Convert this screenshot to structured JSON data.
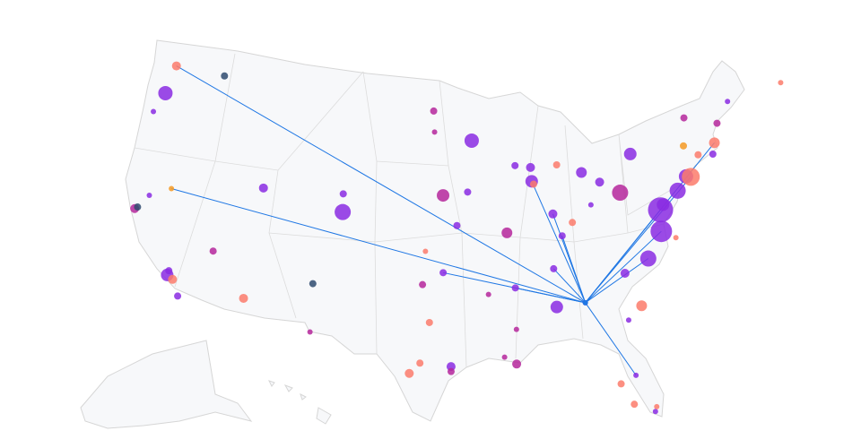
{
  "map": {
    "projection": "albers-usa",
    "hub": {
      "lon": -84.43,
      "lat": 33.64
    },
    "route_color": "#1f77e4",
    "points": [
      {
        "lon": -122.3,
        "lat": 47.45,
        "size": 5,
        "color": "#fb7b6b"
      },
      {
        "lon": -122.6,
        "lat": 45.5,
        "size": 8,
        "color": "#8a2be2"
      },
      {
        "lon": -117.5,
        "lat": 47.6,
        "size": 4,
        "color": "#2f4b6e"
      },
      {
        "lon": -123.2,
        "lat": 44.1,
        "size": 3,
        "color": "#8a2be2"
      },
      {
        "lon": -122.4,
        "lat": 37.6,
        "size": 5,
        "color": "#b5279b"
      },
      {
        "lon": -122.2,
        "lat": 37.75,
        "size": 4,
        "color": "#2f4b6e"
      },
      {
        "lon": -121.5,
        "lat": 38.7,
        "size": 3,
        "color": "#8a2be2"
      },
      {
        "lon": -119.8,
        "lat": 39.5,
        "size": 3,
        "color": "#f59a23"
      },
      {
        "lon": -115.15,
        "lat": 36.1,
        "size": 4,
        "color": "#b5279b"
      },
      {
        "lon": -118.4,
        "lat": 33.9,
        "size": 7,
        "color": "#8a2be2"
      },
      {
        "lon": -118.35,
        "lat": 34.2,
        "size": 4,
        "color": "#8a2be2"
      },
      {
        "lon": -117.9,
        "lat": 33.7,
        "size": 5,
        "color": "#fb7b6b"
      },
      {
        "lon": -117.2,
        "lat": 32.7,
        "size": 4,
        "color": "#8a2be2"
      },
      {
        "lon": -111.9,
        "lat": 40.8,
        "size": 5,
        "color": "#8a2be2"
      },
      {
        "lon": -104.7,
        "lat": 39.9,
        "size": 9,
        "color": "#8a2be2"
      },
      {
        "lon": -104.8,
        "lat": 41.1,
        "size": 4,
        "color": "#8a2be2"
      },
      {
        "lon": -106.6,
        "lat": 35.0,
        "size": 4,
        "color": "#2f4b6e"
      },
      {
        "lon": -112.0,
        "lat": 33.4,
        "size": 5,
        "color": "#fb7b6b"
      },
      {
        "lon": -93.2,
        "lat": 44.9,
        "size": 8,
        "color": "#8a2be2"
      },
      {
        "lon": -96.8,
        "lat": 46.9,
        "size": 4,
        "color": "#b5279b"
      },
      {
        "lon": -96.7,
        "lat": 45.5,
        "size": 3,
        "color": "#b5279b"
      },
      {
        "lon": -95.9,
        "lat": 41.3,
        "size": 7,
        "color": "#b5279b"
      },
      {
        "lon": -94.7,
        "lat": 39.3,
        "size": 4,
        "color": "#8a2be2"
      },
      {
        "lon": -97.4,
        "lat": 37.6,
        "size": 3,
        "color": "#fb7b6b"
      },
      {
        "lon": -95.9,
        "lat": 36.2,
        "size": 4,
        "color": "#8a2be2"
      },
      {
        "lon": -97.6,
        "lat": 35.4,
        "size": 4,
        "color": "#b5279b"
      },
      {
        "lon": -97.0,
        "lat": 32.9,
        "size": 4,
        "color": "#fb7b6b"
      },
      {
        "lon": -97.7,
        "lat": 30.2,
        "size": 4,
        "color": "#fb7b6b"
      },
      {
        "lon": -98.5,
        "lat": 29.5,
        "size": 5,
        "color": "#fb7b6b"
      },
      {
        "lon": -95.3,
        "lat": 29.98,
        "size": 5,
        "color": "#8a2be2"
      },
      {
        "lon": -95.3,
        "lat": 29.65,
        "size": 4,
        "color": "#b5279b"
      },
      {
        "lon": -106.4,
        "lat": 31.8,
        "size": 3,
        "color": "#b5279b"
      },
      {
        "lon": -90.25,
        "lat": 30.0,
        "size": 5,
        "color": "#b5279b"
      },
      {
        "lon": -91.15,
        "lat": 30.5,
        "size": 3,
        "color": "#b5279b"
      },
      {
        "lon": -89.98,
        "lat": 35.04,
        "size": 4,
        "color": "#8a2be2"
      },
      {
        "lon": -92.2,
        "lat": 34.7,
        "size": 3,
        "color": "#b5279b"
      },
      {
        "lon": -90.1,
        "lat": 32.3,
        "size": 3,
        "color": "#b5279b"
      },
      {
        "lon": -86.7,
        "lat": 36.1,
        "size": 4,
        "color": "#8a2be2"
      },
      {
        "lon": -90.4,
        "lat": 38.7,
        "size": 6,
        "color": "#b5279b"
      },
      {
        "lon": -87.9,
        "lat": 41.98,
        "size": 7,
        "color": "#8a2be2"
      },
      {
        "lon": -87.75,
        "lat": 41.78,
        "size": 4,
        "color": "#fb7b6b"
      },
      {
        "lon": -87.9,
        "lat": 42.9,
        "size": 5,
        "color": "#8a2be2"
      },
      {
        "lon": -89.3,
        "lat": 43.1,
        "size": 4,
        "color": "#8a2be2"
      },
      {
        "lon": -93.7,
        "lat": 41.5,
        "size": 4,
        "color": "#8a2be2"
      },
      {
        "lon": -86.3,
        "lat": 39.7,
        "size": 5,
        "color": "#8a2be2"
      },
      {
        "lon": -85.7,
        "lat": 38.2,
        "size": 4,
        "color": "#8a2be2"
      },
      {
        "lon": -84.7,
        "lat": 39.0,
        "size": 4,
        "color": "#fb7b6b"
      },
      {
        "lon": -83.35,
        "lat": 42.2,
        "size": 6,
        "color": "#8a2be2"
      },
      {
        "lon": -85.5,
        "lat": 42.9,
        "size": 4,
        "color": "#fb7b6b"
      },
      {
        "lon": -81.85,
        "lat": 41.4,
        "size": 5,
        "color": "#8a2be2"
      },
      {
        "lon": -82.9,
        "lat": 40.0,
        "size": 3,
        "color": "#8a2be2"
      },
      {
        "lon": -80.2,
        "lat": 40.5,
        "size": 9,
        "color": "#b5279b"
      },
      {
        "lon": -78.7,
        "lat": 42.9,
        "size": 7,
        "color": "#8a2be2"
      },
      {
        "lon": -77.0,
        "lat": 38.9,
        "size": 14,
        "color": "#8a2be2"
      },
      {
        "lon": -76.7,
        "lat": 39.2,
        "size": 7,
        "color": "#8a2be2"
      },
      {
        "lon": -75.2,
        "lat": 39.9,
        "size": 9,
        "color": "#8a2be2"
      },
      {
        "lon": -74.2,
        "lat": 40.7,
        "size": 8,
        "color": "#8a2be2"
      },
      {
        "lon": -73.8,
        "lat": 40.6,
        "size": 10,
        "color": "#fb7b6b"
      },
      {
        "lon": -71.0,
        "lat": 42.4,
        "size": 6,
        "color": "#fb7b6b"
      },
      {
        "lon": -71.4,
        "lat": 41.7,
        "size": 4,
        "color": "#8a2be2"
      },
      {
        "lon": -72.7,
        "lat": 41.9,
        "size": 4,
        "color": "#fb7b6b"
      },
      {
        "lon": -73.8,
        "lat": 42.7,
        "size": 4,
        "color": "#f59a23"
      },
      {
        "lon": -70.3,
        "lat": 43.6,
        "size": 4,
        "color": "#b5279b"
      },
      {
        "lon": -68.8,
        "lat": 44.8,
        "size": 3,
        "color": "#8a2be2"
      },
      {
        "lon": -73.15,
        "lat": 44.5,
        "size": 4,
        "color": "#b5279b"
      },
      {
        "lon": -77.3,
        "lat": 37.5,
        "size": 12,
        "color": "#8a2be2"
      },
      {
        "lon": -76.2,
        "lat": 36.9,
        "size": 3,
        "color": "#fb7b6b"
      },
      {
        "lon": -78.8,
        "lat": 35.9,
        "size": 9,
        "color": "#8a2be2"
      },
      {
        "lon": -80.9,
        "lat": 35.2,
        "size": 5,
        "color": "#8a2be2"
      },
      {
        "lon": -80.0,
        "lat": 32.9,
        "size": 6,
        "color": "#fb7b6b"
      },
      {
        "lon": -81.2,
        "lat": 32.1,
        "size": 3,
        "color": "#8a2be2"
      },
      {
        "lon": -84.43,
        "lat": 33.64,
        "size": 3,
        "color": "#8a2be2"
      },
      {
        "lon": -86.75,
        "lat": 33.56,
        "size": 7,
        "color": "#8a2be2"
      },
      {
        "lon": -82.5,
        "lat": 27.98,
        "size": 4,
        "color": "#fb7b6b"
      },
      {
        "lon": -81.3,
        "lat": 28.4,
        "size": 3,
        "color": "#8a2be2"
      },
      {
        "lon": -81.75,
        "lat": 26.5,
        "size": 4,
        "color": "#fb7b6b"
      },
      {
        "lon": -80.3,
        "lat": 25.8,
        "size": 3,
        "color": "#8a2be2"
      },
      {
        "lon": -80.15,
        "lat": 26.1,
        "size": 3,
        "color": "#fb7b6b"
      },
      {
        "lon": -63.5,
        "lat": 44.9,
        "size": 3,
        "color": "#fb7b6b"
      }
    ],
    "routes": [
      {
        "lon": -122.3,
        "lat": 47.45
      },
      {
        "lon": -119.8,
        "lat": 39.5
      },
      {
        "lon": -95.9,
        "lat": 36.2
      },
      {
        "lon": -89.98,
        "lat": 35.04
      },
      {
        "lon": -86.7,
        "lat": 36.1
      },
      {
        "lon": -86.3,
        "lat": 39.7
      },
      {
        "lon": -87.9,
        "lat": 41.98
      },
      {
        "lon": -85.7,
        "lat": 38.2
      },
      {
        "lon": -77.0,
        "lat": 38.9
      },
      {
        "lon": -77.3,
        "lat": 37.5
      },
      {
        "lon": -78.8,
        "lat": 35.9
      },
      {
        "lon": -73.8,
        "lat": 40.6
      },
      {
        "lon": -71.0,
        "lat": 42.4
      },
      {
        "lon": -81.3,
        "lat": 28.4
      }
    ]
  }
}
